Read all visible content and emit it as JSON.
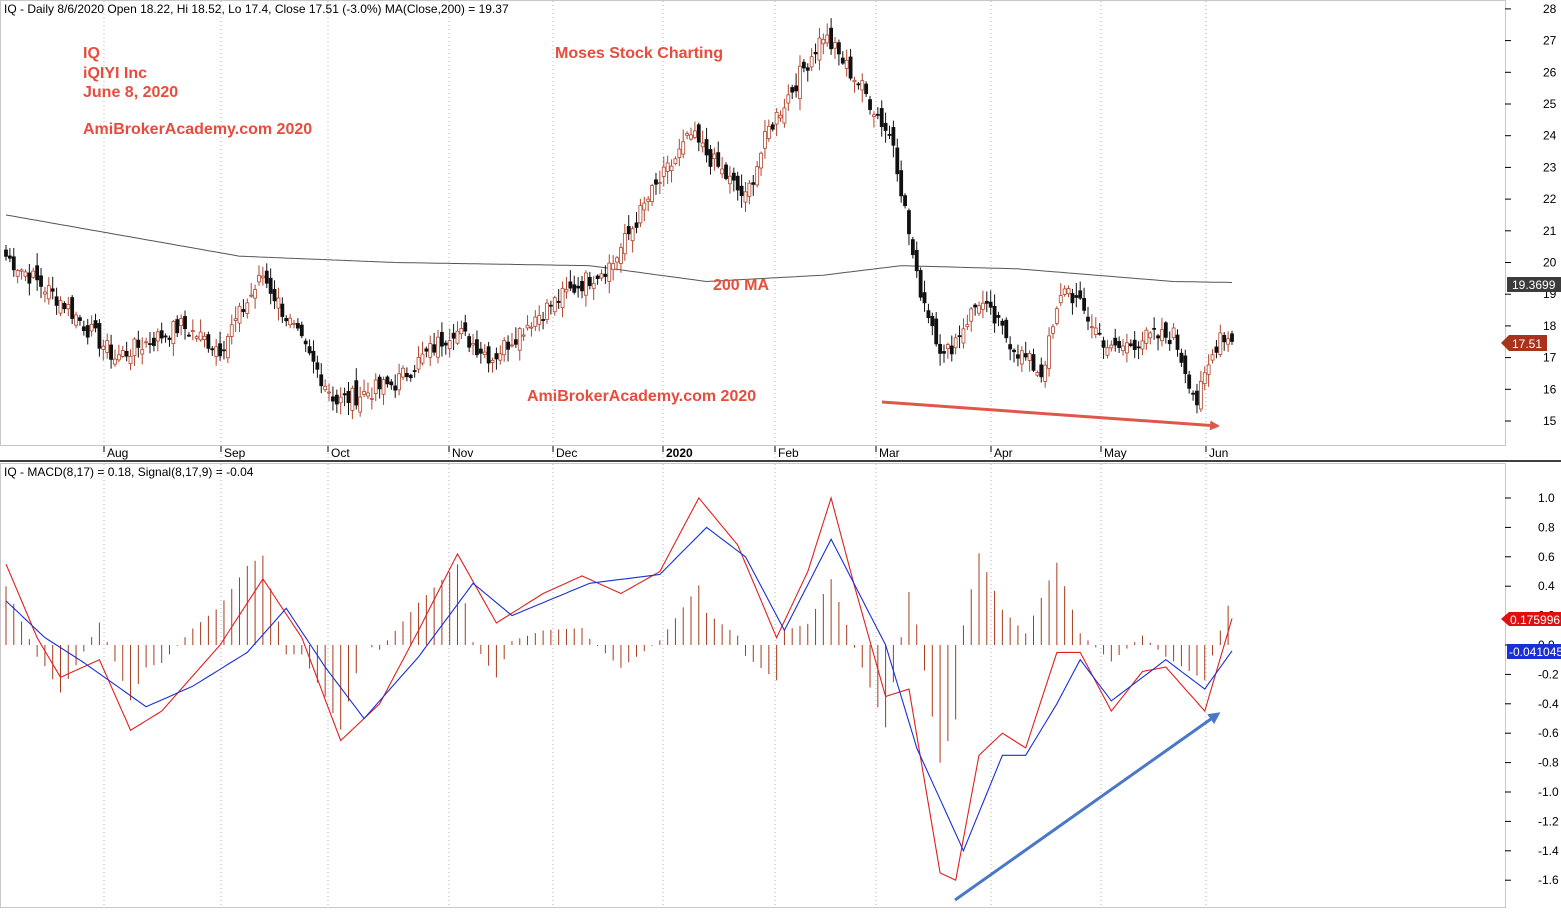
{
  "colors": {
    "up": "#b5432b",
    "down": "#111111",
    "ma": "#555555",
    "macd": "#e02020",
    "signal": "#1a2fd6",
    "hist": "#a83a1c",
    "note": "#e74c3c",
    "arrow_down": "#e0574a",
    "arrow_up": "#4a78c8"
  },
  "header": {
    "price": "IQ - Daily 8/6/2020 Open 18.22, Hi 18.52, Lo 17.4, Close 17.51 (-3.0%) MA(Close,200) = 19.37",
    "macd": "IQ - MACD(8,17) = 0.18, Signal(8,17,9) = -0.04"
  },
  "annotations": {
    "ticker": "IQ",
    "company": "iQIYI Inc",
    "date": "June 8, 2020",
    "site_top": "AmiBrokerAcademy.com  2020",
    "brand": "Moses Stock Charting",
    "ma_label": "200 MA",
    "site_bottom": "AmiBrokerAcademy.com  2020"
  },
  "badges": {
    "ma_value": "19.3699",
    "close_value": "17.51",
    "macd_value": "0.175996",
    "signal_value": "-0.041045"
  },
  "chart_data": [
    {
      "type": "candlestick",
      "title": "IQ - Daily",
      "xlabels": [
        "Aug",
        "Sep",
        "Oct",
        "Nov",
        "Dec",
        "2020",
        "Feb",
        "Mar",
        "Apr",
        "May",
        "Jun"
      ],
      "ylim": [
        14,
        28
      ],
      "yticks": [
        15,
        16,
        17,
        18,
        19,
        20,
        21,
        22,
        23,
        24,
        25,
        26,
        27,
        28
      ],
      "ma200_anchors": [
        [
          0,
          21.5
        ],
        [
          60,
          20.2
        ],
        [
          100,
          20.0
        ],
        [
          150,
          19.9
        ],
        [
          180,
          19.4
        ],
        [
          210,
          19.6
        ],
        [
          230,
          19.9
        ],
        [
          260,
          19.8
        ],
        [
          300,
          19.4
        ],
        [
          315,
          19.37
        ]
      ],
      "close_anchors": [
        [
          0,
          20.2
        ],
        [
          15,
          18.7
        ],
        [
          28,
          17.0
        ],
        [
          45,
          18.0
        ],
        [
          55,
          17.3
        ],
        [
          66,
          19.6
        ],
        [
          78,
          17.0
        ],
        [
          85,
          15.6
        ],
        [
          100,
          16.2
        ],
        [
          115,
          17.9
        ],
        [
          125,
          17.0
        ],
        [
          135,
          18.2
        ],
        [
          146,
          19.2
        ],
        [
          156,
          20.0
        ],
        [
          165,
          22.0
        ],
        [
          176,
          24.0
        ],
        [
          190,
          22.0
        ],
        [
          196,
          24.2
        ],
        [
          210,
          27.2
        ],
        [
          220,
          25.5
        ],
        [
          228,
          23.8
        ],
        [
          234,
          19.5
        ],
        [
          241,
          17.0
        ],
        [
          250,
          18.8
        ],
        [
          260,
          17.2
        ],
        [
          266,
          16.5
        ],
        [
          272,
          19.3
        ],
        [
          284,
          17.2
        ],
        [
          292,
          17.6
        ],
        [
          300,
          17.7
        ],
        [
          306,
          15.6
        ],
        [
          312,
          17.8
        ],
        [
          315,
          17.51
        ]
      ]
    },
    {
      "type": "line",
      "title": "MACD(8,17)",
      "ylim": [
        -1.8,
        1.2
      ],
      "yticks": [
        -1.6,
        -1.4,
        -1.2,
        -1.0,
        -0.8,
        -0.6,
        -0.4,
        -0.2,
        0.0,
        0.2,
        0.4,
        0.6,
        0.8,
        1.0
      ],
      "series": [
        {
          "name": "MACD(8,17)",
          "anchors": [
            [
              0,
              0.55
            ],
            [
              8,
              0.05
            ],
            [
              14,
              -0.22
            ],
            [
              24,
              -0.1
            ],
            [
              32,
              -0.58
            ],
            [
              40,
              -0.45
            ],
            [
              55,
              0.0
            ],
            [
              66,
              0.45
            ],
            [
              76,
              0.05
            ],
            [
              86,
              -0.65
            ],
            [
              96,
              -0.4
            ],
            [
              106,
              0.1
            ],
            [
              116,
              0.62
            ],
            [
              126,
              0.15
            ],
            [
              138,
              0.35
            ],
            [
              148,
              0.47
            ],
            [
              158,
              0.35
            ],
            [
              168,
              0.5
            ],
            [
              178,
              1.0
            ],
            [
              188,
              0.68
            ],
            [
              198,
              0.05
            ],
            [
              206,
              0.5
            ],
            [
              212,
              1.0
            ],
            [
              218,
              0.4
            ],
            [
              226,
              -0.35
            ],
            [
              232,
              -0.3
            ],
            [
              240,
              -1.55
            ],
            [
              244,
              -1.6
            ],
            [
              250,
              -0.75
            ],
            [
              256,
              -0.6
            ],
            [
              262,
              -0.7
            ],
            [
              270,
              -0.05
            ],
            [
              276,
              -0.05
            ],
            [
              284,
              -0.45
            ],
            [
              292,
              -0.18
            ],
            [
              298,
              -0.15
            ],
            [
              308,
              -0.45
            ],
            [
              315,
              0.18
            ]
          ]
        },
        {
          "name": "Signal(8,17,9)",
          "anchors": [
            [
              0,
              0.3
            ],
            [
              10,
              0.05
            ],
            [
              20,
              -0.12
            ],
            [
              36,
              -0.42
            ],
            [
              48,
              -0.28
            ],
            [
              62,
              -0.05
            ],
            [
              72,
              0.25
            ],
            [
              82,
              -0.15
            ],
            [
              92,
              -0.5
            ],
            [
              106,
              -0.08
            ],
            [
              120,
              0.42
            ],
            [
              130,
              0.2
            ],
            [
              150,
              0.42
            ],
            [
              168,
              0.48
            ],
            [
              180,
              0.8
            ],
            [
              190,
              0.6
            ],
            [
              200,
              0.1
            ],
            [
              212,
              0.72
            ],
            [
              226,
              0.0
            ],
            [
              234,
              -0.7
            ],
            [
              246,
              -1.4
            ],
            [
              256,
              -0.75
            ],
            [
              262,
              -0.75
            ],
            [
              270,
              -0.4
            ],
            [
              276,
              -0.1
            ],
            [
              284,
              -0.38
            ],
            [
              298,
              -0.1
            ],
            [
              308,
              -0.3
            ],
            [
              315,
              -0.04
            ]
          ]
        }
      ]
    }
  ]
}
